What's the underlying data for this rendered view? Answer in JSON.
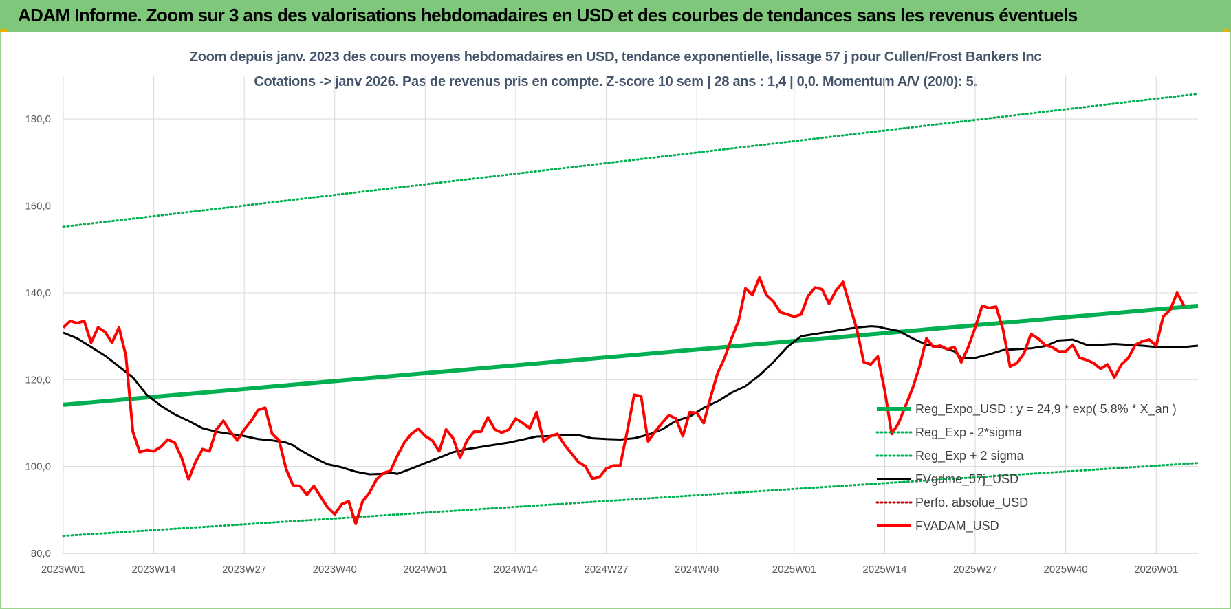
{
  "banner": {
    "title": "ADAM Informe. Zoom sur 3 ans des valorisations hebdomadaires en USD et des courbes de tendances sans les revenus éventuels"
  },
  "colors": {
    "banner_bg": "#7fc77b",
    "trend": "#00b050",
    "band": "#00b050",
    "smooth": "#000000",
    "fvadam": "#ff0000",
    "perfo": "#c00000",
    "grid": "#d9d9d9"
  },
  "chart_data": {
    "type": "line",
    "title": "Zoom depuis janv. 2023 des cours moyens hebdomadaires en USD, tendance exponentielle, lissage 57 j pour Cullen/Frost Bankers Inc",
    "subtitle": "Cotations -> janv 2026. Pas de revenus pris en compte. Z-score 10 sem | 28 ans : 1,4 | 0,0. Momentum A/V (20/0): 5.",
    "xlabel": "",
    "ylabel": "",
    "ylim": [
      80,
      190
    ],
    "yticks": [
      80,
      100,
      120,
      140,
      160,
      180
    ],
    "ytick_labels": [
      "80,0",
      "100,0",
      "120,0",
      "140,0",
      "160,0",
      "180,0"
    ],
    "x_range": [
      0,
      163
    ],
    "x_ticks": [
      {
        "label": "2023W01",
        "x": 0
      },
      {
        "label": "2023W14",
        "x": 13
      },
      {
        "label": "2023W27",
        "x": 26
      },
      {
        "label": "2023W40",
        "x": 39
      },
      {
        "label": "2024W01",
        "x": 52
      },
      {
        "label": "2024W14",
        "x": 65
      },
      {
        "label": "2024W27",
        "x": 78
      },
      {
        "label": "2024W40",
        "x": 91
      },
      {
        "label": "2025W01",
        "x": 105
      },
      {
        "label": "2025W14",
        "x": 118
      },
      {
        "label": "2025W27",
        "x": 131
      },
      {
        "label": "2025W40",
        "x": 144
      },
      {
        "label": "2026W01",
        "x": 157
      }
    ],
    "legend_position": "bottom-right",
    "series": [
      {
        "name": "Reg_Expo_USD : y = 24,9 * exp( 5,8% *  X_an )",
        "style": "thick",
        "color": "#00b050",
        "points": [
          [
            0,
            114.2
          ],
          [
            163,
            137.0
          ]
        ]
      },
      {
        "name": "Reg_Exp - 2*sigma",
        "style": "dotted",
        "color": "#00b050",
        "points": [
          [
            0,
            84.0
          ],
          [
            163,
            100.8
          ]
        ]
      },
      {
        "name": "Reg_Exp + 2 sigma",
        "style": "dotted",
        "color": "#00b050",
        "points": [
          [
            0,
            155.2
          ],
          [
            163,
            185.8
          ]
        ]
      },
      {
        "name": "FVgdme_57j_USD",
        "style": "solid",
        "color": "#000000",
        "points": [
          [
            0,
            130.8
          ],
          [
            2,
            129.5
          ],
          [
            4,
            127.5
          ],
          [
            6,
            125.5
          ],
          [
            8,
            123.0
          ],
          [
            10,
            120.5
          ],
          [
            12,
            116.5
          ],
          [
            14,
            114.0
          ],
          [
            16,
            112.0
          ],
          [
            18,
            110.5
          ],
          [
            20,
            108.8
          ],
          [
            22,
            108.0
          ],
          [
            24,
            107.5
          ],
          [
            26,
            107.0
          ],
          [
            28,
            106.3
          ],
          [
            30,
            106.0
          ],
          [
            32,
            105.5
          ],
          [
            33,
            104.9
          ],
          [
            34,
            103.8
          ],
          [
            36,
            102.0
          ],
          [
            38,
            100.5
          ],
          [
            40,
            99.8
          ],
          [
            42,
            98.8
          ],
          [
            44,
            98.2
          ],
          [
            46,
            98.3
          ],
          [
            47,
            98.6
          ],
          [
            48,
            98.3
          ],
          [
            50,
            99.5
          ],
          [
            52,
            100.8
          ],
          [
            54,
            102.0
          ],
          [
            56,
            103.3
          ],
          [
            58,
            104.0
          ],
          [
            60,
            104.5
          ],
          [
            62,
            105.0
          ],
          [
            64,
            105.5
          ],
          [
            66,
            106.2
          ],
          [
            68,
            106.9
          ],
          [
            70,
            107.0
          ],
          [
            72,
            107.3
          ],
          [
            74,
            107.2
          ],
          [
            76,
            106.5
          ],
          [
            78,
            106.3
          ],
          [
            80,
            106.2
          ],
          [
            82,
            106.5
          ],
          [
            84,
            107.3
          ],
          [
            86,
            108.5
          ],
          [
            88,
            110.5
          ],
          [
            90,
            111.5
          ],
          [
            92,
            113.5
          ],
          [
            94,
            115.0
          ],
          [
            96,
            117.0
          ],
          [
            98,
            118.5
          ],
          [
            100,
            121.0
          ],
          [
            102,
            124.0
          ],
          [
            104,
            127.5
          ],
          [
            106,
            130.0
          ],
          [
            108,
            130.5
          ],
          [
            110,
            131.0
          ],
          [
            112,
            131.5
          ],
          [
            114,
            132.0
          ],
          [
            116,
            132.3
          ],
          [
            117,
            132.2
          ],
          [
            118,
            131.8
          ],
          [
            120,
            131.2
          ],
          [
            122,
            129.5
          ],
          [
            124,
            128.0
          ],
          [
            126,
            127.5
          ],
          [
            128,
            126.5
          ],
          [
            129,
            125.0
          ],
          [
            131,
            125.0
          ],
          [
            133,
            125.8
          ],
          [
            135,
            126.8
          ],
          [
            137,
            127.0
          ],
          [
            139,
            127.2
          ],
          [
            141,
            127.7
          ],
          [
            143,
            129.0
          ],
          [
            145,
            129.2
          ],
          [
            147,
            128.0
          ],
          [
            149,
            128.0
          ],
          [
            151,
            128.2
          ],
          [
            153,
            128.0
          ],
          [
            155,
            127.8
          ],
          [
            157,
            127.5
          ],
          [
            159,
            127.5
          ],
          [
            161,
            127.5
          ],
          [
            163,
            127.8
          ]
        ]
      },
      {
        "name": "Perfo. absolue_USD",
        "style": "dotted",
        "color": "#c00000",
        "points": []
      },
      {
        "name": "FVADAM_USD",
        "style": "thick",
        "color": "#ff0000",
        "points": [
          [
            0,
            132.0
          ],
          [
            1,
            133.5
          ],
          [
            2,
            133.0
          ],
          [
            3,
            133.5
          ],
          [
            4,
            128.5
          ],
          [
            5,
            132.0
          ],
          [
            6,
            131.0
          ],
          [
            7,
            128.5
          ],
          [
            8,
            132.0
          ],
          [
            9,
            125.5
          ],
          [
            10,
            108.0
          ],
          [
            11,
            103.3
          ],
          [
            12,
            103.8
          ],
          [
            13,
            103.5
          ],
          [
            14,
            104.5
          ],
          [
            15,
            106.2
          ],
          [
            16,
            105.5
          ],
          [
            17,
            102.0
          ],
          [
            18,
            97.0
          ],
          [
            19,
            101.0
          ],
          [
            20,
            104.0
          ],
          [
            21,
            103.5
          ],
          [
            22,
            108.5
          ],
          [
            23,
            110.5
          ],
          [
            24,
            108.0
          ],
          [
            25,
            106.0
          ],
          [
            26,
            108.5
          ],
          [
            27,
            110.5
          ],
          [
            28,
            113.0
          ],
          [
            29,
            113.5
          ],
          [
            30,
            107.5
          ],
          [
            31,
            106.0
          ],
          [
            32,
            99.5
          ],
          [
            33,
            95.7
          ],
          [
            34,
            95.5
          ],
          [
            35,
            93.5
          ],
          [
            36,
            95.5
          ],
          [
            37,
            93.0
          ],
          [
            38,
            90.5
          ],
          [
            39,
            89.0
          ],
          [
            40,
            91.3
          ],
          [
            41,
            92.0
          ],
          [
            42,
            86.8
          ],
          [
            43,
            92.0
          ],
          [
            44,
            94.0
          ],
          [
            45,
            97.0
          ],
          [
            46,
            98.5
          ],
          [
            47,
            99.0
          ],
          [
            48,
            102.5
          ],
          [
            49,
            105.5
          ],
          [
            50,
            107.5
          ],
          [
            51,
            108.7
          ],
          [
            52,
            107.0
          ],
          [
            53,
            106.0
          ],
          [
            54,
            103.5
          ],
          [
            55,
            108.5
          ],
          [
            56,
            106.5
          ],
          [
            57,
            102.0
          ],
          [
            58,
            106.0
          ],
          [
            59,
            108.0
          ],
          [
            60,
            108.0
          ],
          [
            61,
            111.3
          ],
          [
            62,
            108.5
          ],
          [
            63,
            107.8
          ],
          [
            64,
            108.5
          ],
          [
            65,
            111.0
          ],
          [
            66,
            110.0
          ],
          [
            67,
            108.8
          ],
          [
            68,
            112.5
          ],
          [
            69,
            105.8
          ],
          [
            70,
            107.0
          ],
          [
            71,
            107.5
          ],
          [
            72,
            105.0
          ],
          [
            73,
            103.0
          ],
          [
            74,
            101.0
          ],
          [
            75,
            100.0
          ],
          [
            76,
            97.2
          ],
          [
            77,
            97.5
          ],
          [
            78,
            99.5
          ],
          [
            79,
            100.2
          ],
          [
            80,
            100.2
          ],
          [
            81,
            108.0
          ],
          [
            82,
            116.5
          ],
          [
            83,
            116.2
          ],
          [
            84,
            105.8
          ],
          [
            85,
            108.0
          ],
          [
            86,
            110.0
          ],
          [
            87,
            111.8
          ],
          [
            88,
            111.0
          ],
          [
            89,
            107.0
          ],
          [
            90,
            112.5
          ],
          [
            91,
            112.3
          ],
          [
            92,
            110.0
          ],
          [
            93,
            116.0
          ],
          [
            94,
            121.5
          ],
          [
            95,
            125.0
          ],
          [
            96,
            129.5
          ],
          [
            97,
            133.5
          ],
          [
            98,
            141.0
          ],
          [
            99,
            139.5
          ],
          [
            100,
            143.5
          ],
          [
            101,
            139.5
          ],
          [
            102,
            138.0
          ],
          [
            103,
            135.5
          ],
          [
            104,
            135.0
          ],
          [
            105,
            134.5
          ],
          [
            106,
            135.0
          ],
          [
            107,
            139.3
          ],
          [
            108,
            141.2
          ],
          [
            109,
            140.8
          ],
          [
            110,
            137.5
          ],
          [
            111,
            140.5
          ],
          [
            112,
            142.5
          ],
          [
            113,
            137.0
          ],
          [
            114,
            131.5
          ],
          [
            115,
            124.0
          ],
          [
            116,
            123.5
          ],
          [
            117,
            125.3
          ],
          [
            118,
            117.5
          ],
          [
            119,
            107.5
          ],
          [
            120,
            110.0
          ],
          [
            121,
            114.0
          ],
          [
            122,
            118.0
          ],
          [
            123,
            123.0
          ],
          [
            124,
            129.5
          ],
          [
            125,
            127.5
          ],
          [
            126,
            127.8
          ],
          [
            127,
            127.0
          ],
          [
            128,
            127.5
          ],
          [
            129,
            124.0
          ],
          [
            130,
            127.5
          ],
          [
            131,
            132.0
          ],
          [
            132,
            137.0
          ],
          [
            133,
            136.5
          ],
          [
            134,
            136.8
          ],
          [
            135,
            131.5
          ],
          [
            136,
            123.0
          ],
          [
            137,
            123.8
          ],
          [
            138,
            126.0
          ],
          [
            139,
            130.5
          ],
          [
            140,
            129.5
          ],
          [
            141,
            128.0
          ],
          [
            142,
            127.5
          ],
          [
            143,
            126.5
          ],
          [
            144,
            126.5
          ],
          [
            145,
            128.0
          ],
          [
            146,
            125.0
          ],
          [
            147,
            124.5
          ],
          [
            148,
            123.8
          ],
          [
            149,
            122.5
          ],
          [
            150,
            123.5
          ],
          [
            151,
            120.5
          ],
          [
            152,
            123.5
          ],
          [
            153,
            125.0
          ],
          [
            154,
            128.0
          ],
          [
            155,
            128.8
          ],
          [
            156,
            129.2
          ],
          [
            157,
            127.8
          ],
          [
            158,
            134.5
          ],
          [
            159,
            136.0
          ],
          [
            160,
            140.0
          ],
          [
            161,
            137.0
          ]
        ]
      }
    ]
  }
}
